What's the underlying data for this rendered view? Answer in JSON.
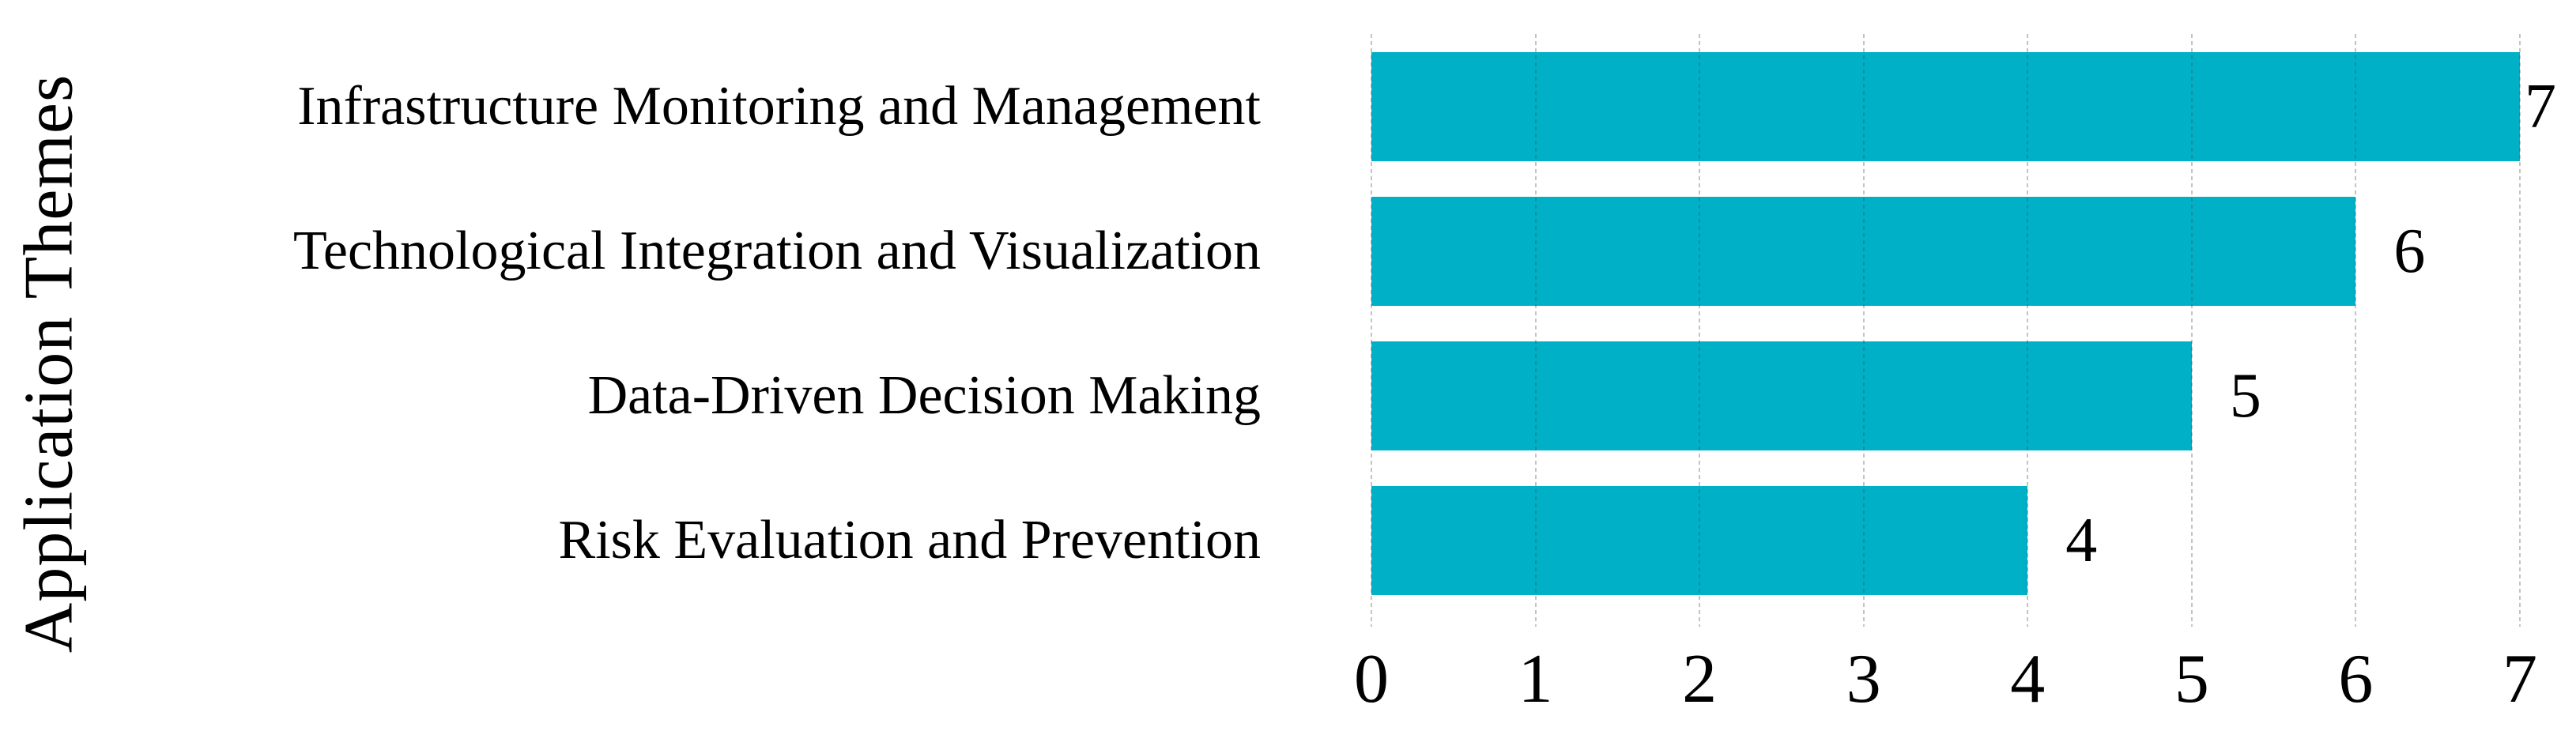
{
  "chart_data": {
    "type": "bar",
    "orientation": "horizontal",
    "title": "",
    "xlabel": "",
    "ylabel": "Application Themes",
    "categories": [
      "Infrastructure Monitoring and Management",
      "Technological Integration and Visualization",
      "Data-Driven Decision Making",
      "Risk Evaluation and Prevention"
    ],
    "values": [
      7,
      6,
      5,
      4
    ],
    "data_labels": [
      "7",
      "6",
      "5",
      "4"
    ],
    "xlim": [
      0,
      7
    ],
    "xticks": [
      "0",
      "1",
      "2",
      "3",
      "4",
      "5",
      "6",
      "7"
    ],
    "grid": "vertical-dotted",
    "legend_position": "none",
    "bar_color": "#00b0c7",
    "gridline_color": "rgba(70,70,70,0.32)",
    "text_color": "#000000",
    "background_color": "#ffffff"
  }
}
